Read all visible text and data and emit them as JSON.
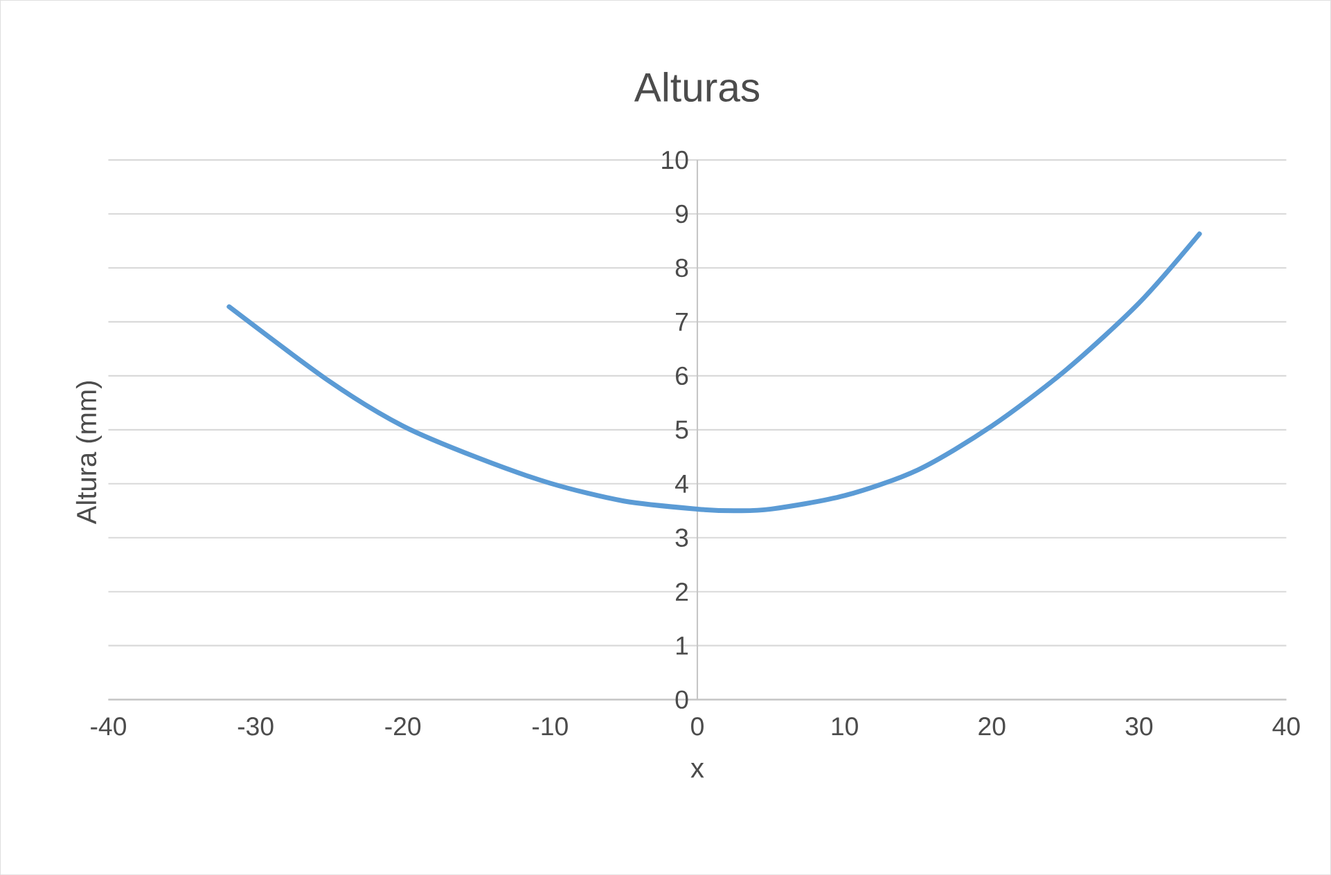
{
  "chart_data": {
    "type": "line",
    "title": "Alturas",
    "xlabel": "x",
    "ylabel": "Altura (mm)",
    "series": [
      {
        "color": "#5b9bd5",
        "x": [
          -31.8,
          -25,
          -20,
          -15,
          -10,
          -5,
          0,
          2.5,
          5,
          10,
          15,
          20,
          25,
          30,
          34.1
        ],
        "values": [
          7.28,
          5.9,
          5.07,
          4.49,
          4.01,
          3.68,
          3.53,
          3.5,
          3.53,
          3.78,
          4.26,
          5.07,
          6.1,
          7.35,
          8.63
        ]
      }
    ],
    "xlim": [
      -40,
      40
    ],
    "xticks": [
      -40,
      -30,
      -20,
      -10,
      0,
      10,
      20,
      30,
      40
    ],
    "ylim": [
      0,
      10
    ],
    "yticks": [
      0,
      1,
      2,
      3,
      4,
      5,
      6,
      7,
      8,
      9,
      10
    ],
    "grid": "y",
    "marker": "none",
    "line_style": "solid"
  }
}
